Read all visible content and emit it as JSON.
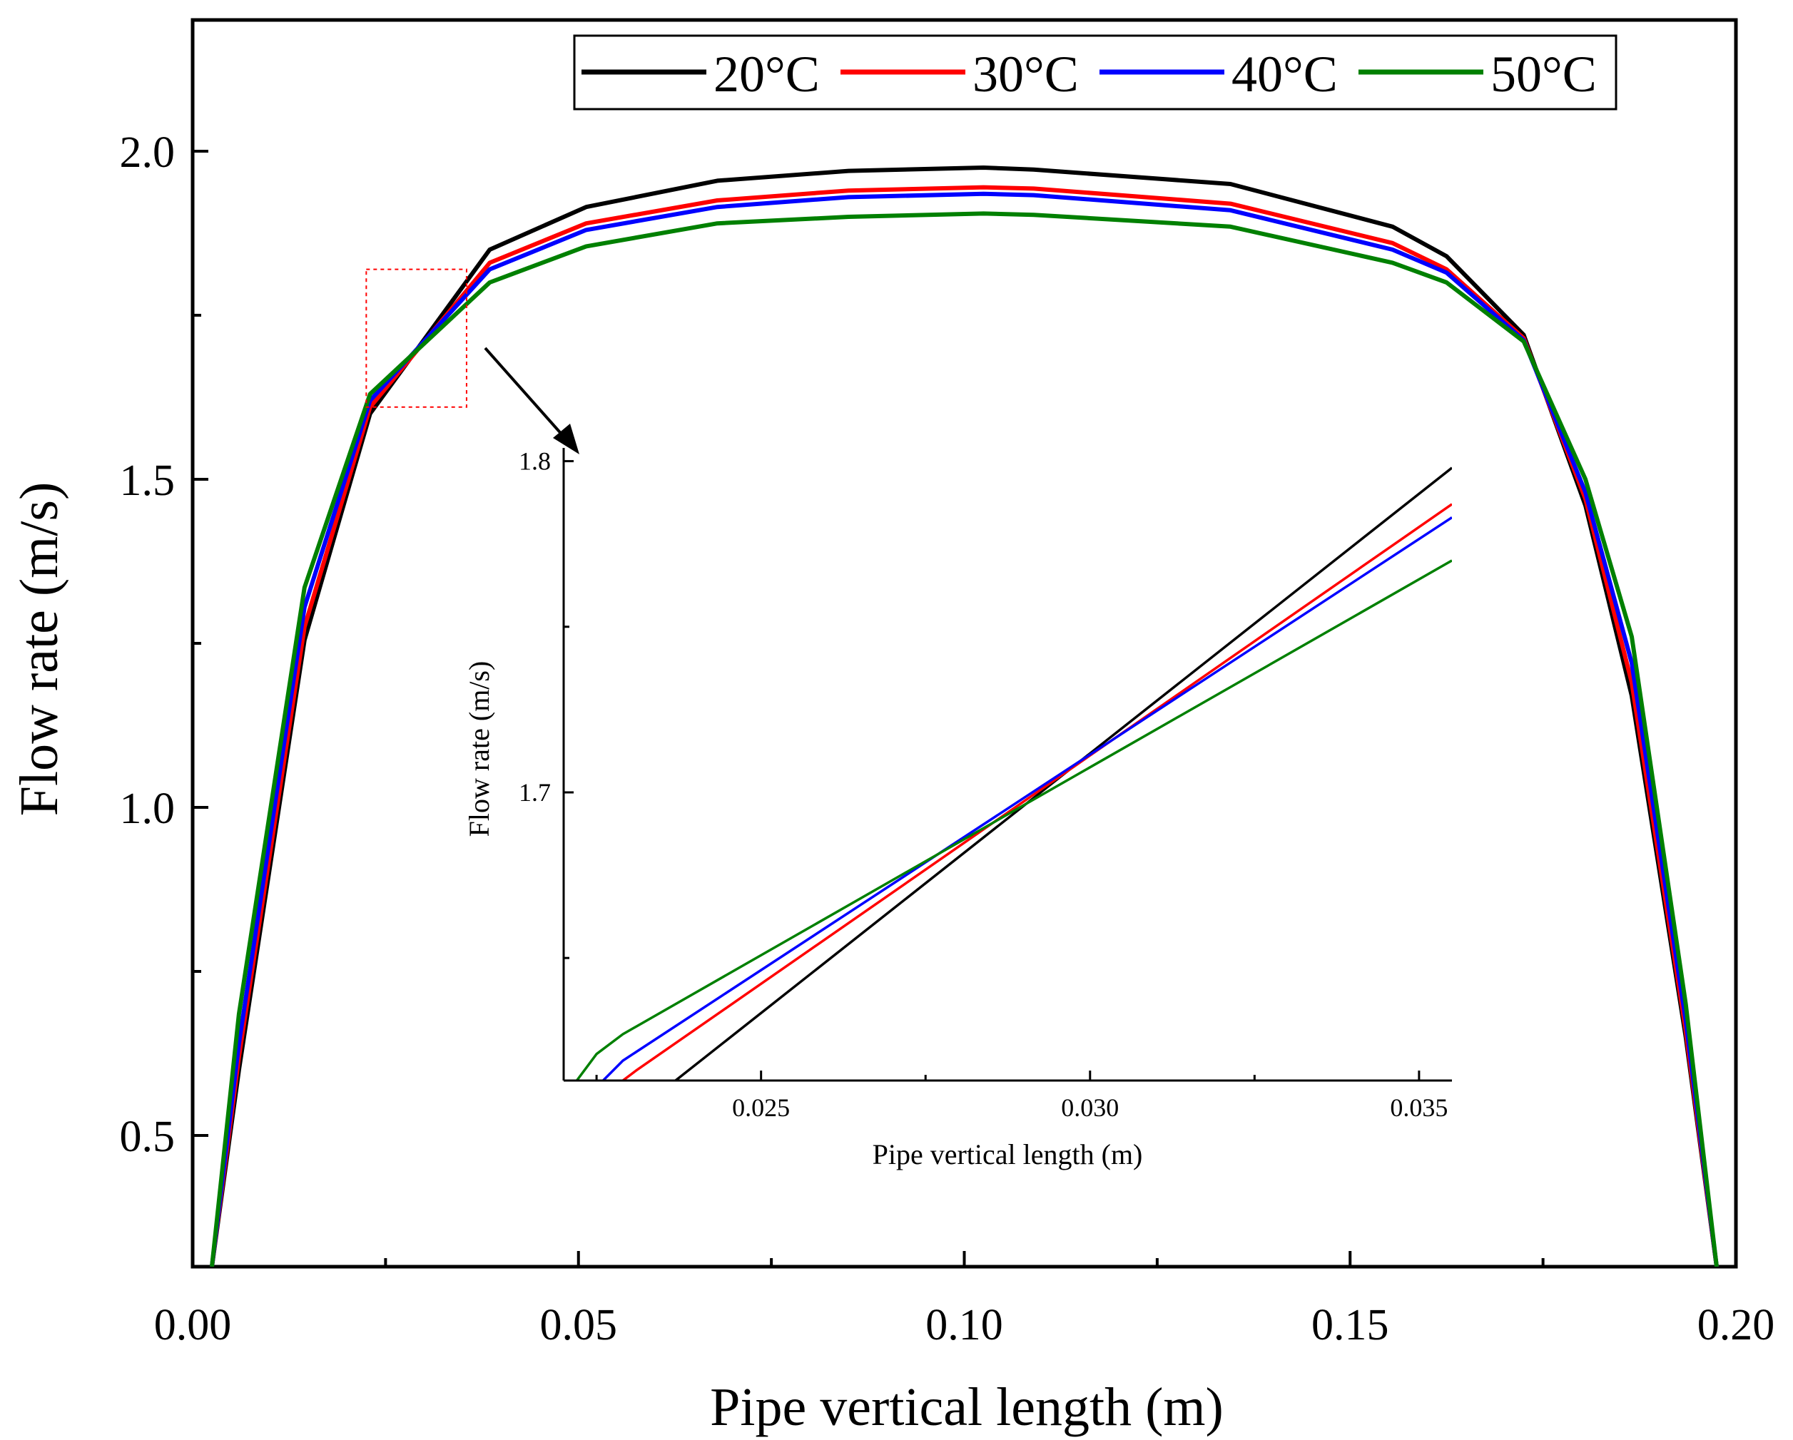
{
  "chart_data": [
    {
      "type": "line",
      "title": "",
      "xlabel": "Pipe vertical length (m)",
      "ylabel": "Flow rate (m/s)",
      "xlim": [
        0.0,
        0.2
      ],
      "ylim": [
        0.3,
        2.2
      ],
      "xticks": [
        0.0,
        0.05,
        0.1,
        0.15,
        0.2
      ],
      "xtick_labels": [
        "0.00",
        "0.05",
        "0.10",
        "0.15",
        "0.20"
      ],
      "yticks": [
        0.5,
        1.0,
        1.5,
        2.0
      ],
      "ytick_labels": [
        "0.5",
        "1.0",
        "1.5",
        "2.0"
      ],
      "legend_position": "top-right",
      "grid": false,
      "x": [
        0.0025,
        0.006,
        0.0145,
        0.023,
        0.0385,
        0.051,
        0.068,
        0.085,
        0.1025,
        0.109,
        0.1345,
        0.1555,
        0.1625,
        0.1725,
        0.1805,
        0.1865,
        0.1935,
        0.1975
      ],
      "series": [
        {
          "name": "20°C",
          "color": "#000000",
          "values": [
            0.3,
            0.6,
            1.255,
            1.6,
            1.85,
            1.915,
            1.955,
            1.97,
            1.975,
            1.972,
            1.95,
            1.885,
            1.84,
            1.72,
            1.46,
            1.17,
            0.65,
            0.3
          ]
        },
        {
          "name": "30°C",
          "color": "#ff0000",
          "values": [
            0.3,
            0.62,
            1.275,
            1.61,
            1.83,
            1.89,
            1.925,
            1.94,
            1.945,
            1.943,
            1.92,
            1.86,
            1.82,
            1.715,
            1.47,
            1.19,
            0.66,
            0.3
          ]
        },
        {
          "name": "40°C",
          "color": "#0000ff",
          "values": [
            0.3,
            0.64,
            1.305,
            1.62,
            1.82,
            1.88,
            1.915,
            1.93,
            1.935,
            1.933,
            1.91,
            1.85,
            1.815,
            1.712,
            1.48,
            1.22,
            0.675,
            0.3
          ]
        },
        {
          "name": "50°C",
          "color": "#008000",
          "values": [
            0.3,
            0.685,
            1.335,
            1.63,
            1.8,
            1.855,
            1.89,
            1.9,
            1.905,
            1.903,
            1.885,
            1.83,
            1.8,
            1.71,
            1.5,
            1.26,
            0.7,
            0.3
          ]
        }
      ],
      "zoom_region": {
        "x": [
          0.0225,
          0.0355
        ],
        "y": [
          1.61,
          1.82
        ]
      }
    },
    {
      "type": "line",
      "title": "",
      "xlabel": "Pipe vertical length (m)",
      "ylabel": "Flow rate (m/s)",
      "xlim": [
        0.022,
        0.0355
      ],
      "ylim": [
        1.613,
        1.804
      ],
      "xticks": [
        0.025,
        0.03,
        0.035
      ],
      "xtick_labels": [
        "0.025",
        "0.030",
        "0.035"
      ],
      "xticks_minor": [
        0.0225,
        0.0275,
        0.0325
      ],
      "yticks": [
        1.7,
        1.8
      ],
      "ytick_labels": [
        "1.7",
        "1.8"
      ],
      "yticks_minor": [
        1.65,
        1.75
      ],
      "grid": false,
      "series": [
        {
          "name": "20°C",
          "color": "#000000",
          "points": [
            [
              0.0237,
              1.613
            ],
            [
              0.0355,
              1.798
            ]
          ]
        },
        {
          "name": "30°C",
          "color": "#ff0000",
          "points": [
            [
              0.0229,
              1.613
            ],
            [
              0.0231,
              1.616
            ],
            [
              0.0355,
              1.787
            ]
          ]
        },
        {
          "name": "40°C",
          "color": "#0000ff",
          "points": [
            [
              0.0226,
              1.613
            ],
            [
              0.0229,
              1.619
            ],
            [
              0.0355,
              1.783
            ]
          ]
        },
        {
          "name": "50°C",
          "color": "#008000",
          "points": [
            [
              0.0222,
              1.613
            ],
            [
              0.0225,
              1.621
            ],
            [
              0.0229,
              1.627
            ],
            [
              0.0355,
              1.77
            ]
          ]
        }
      ]
    }
  ]
}
